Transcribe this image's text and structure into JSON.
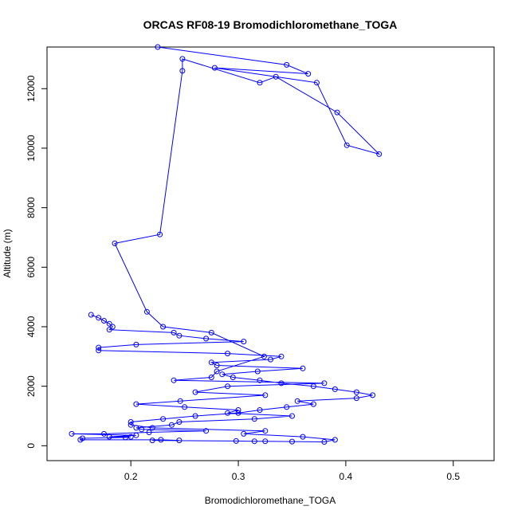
{
  "chart_data": {
    "type": "line",
    "title": "ORCAS RF08-19 Bromodichloromethane_TOGA",
    "xlabel": "Bromodichloromethane_TOGA",
    "ylabel": "Altitude (m)",
    "xlim": [
      0.122,
      0.538
    ],
    "ylim": [
      -500,
      13400
    ],
    "xticks": [
      0.2,
      0.3,
      0.4,
      0.5
    ],
    "xtick_labels": [
      "0.2",
      "0.3",
      "0.4",
      "0.5"
    ],
    "yticks": [
      0,
      2000,
      4000,
      6000,
      8000,
      10000,
      12000
    ],
    "ytick_labels": [
      "0",
      "2000",
      "4000",
      "6000",
      "8000",
      "10000",
      "12000"
    ],
    "grid": false,
    "line_color": "#0000ff",
    "marker": "open-circle",
    "x": [
      0.225,
      0.345,
      0.365,
      0.278,
      0.373,
      0.401,
      0.431,
      0.392,
      0.335,
      0.32,
      0.248,
      0.248,
      0.227,
      0.185,
      0.215,
      0.23,
      0.275,
      0.324,
      0.28,
      0.275,
      0.24,
      0.38,
      0.29,
      0.26,
      0.325,
      0.246,
      0.205,
      0.25,
      0.3,
      0.29,
      0.35,
      0.315,
      0.245,
      0.238,
      0.205,
      0.21,
      0.27,
      0.217,
      0.175,
      0.145,
      0.205,
      0.18,
      0.2,
      0.195,
      0.155,
      0.153,
      0.228,
      0.245,
      0.22,
      0.298,
      0.315,
      0.325,
      0.35,
      0.38,
      0.39,
      0.36,
      0.305,
      0.325,
      0.22,
      0.2,
      0.2,
      0.23,
      0.26,
      0.3,
      0.32,
      0.345,
      0.37,
      0.355,
      0.41,
      0.425,
      0.41,
      0.39,
      0.37,
      0.34,
      0.32,
      0.295,
      0.285,
      0.318,
      0.36,
      0.28,
      0.275,
      0.33,
      0.34,
      0.29,
      0.17,
      0.17,
      0.205,
      0.305,
      0.27,
      0.245,
      0.24,
      0.18,
      0.183,
      0.18,
      0.175,
      0.17,
      0.163
    ],
    "y": [
      13400,
      12800,
      12500,
      12700,
      12200,
      10100,
      9800,
      11200,
      12400,
      12200,
      13000,
      12600,
      7100,
      6800,
      4500,
      4000,
      3800,
      3000,
      2500,
      2300,
      2200,
      2100,
      2000,
      1800,
      1700,
      1500,
      1400,
      1300,
      1200,
      1100,
      1000,
      900,
      800,
      700,
      600,
      550,
      500,
      450,
      400,
      400,
      350,
      300,
      300,
      280,
      250,
      200,
      200,
      180,
      180,
      160,
      150,
      150,
      140,
      130,
      200,
      300,
      400,
      500,
      600,
      700,
      800,
      900,
      1000,
      1100,
      1200,
      1300,
      1400,
      1500,
      1600,
      1700,
      1800,
      1900,
      2000,
      2100,
      2200,
      2300,
      2400,
      2500,
      2600,
      2700,
      2800,
      2900,
      3000,
      3100,
      3200,
      3300,
      3400,
      3500,
      3600,
      3700,
      3800,
      3900,
      4000,
      4100,
      4200,
      4300,
      4400
    ]
  }
}
